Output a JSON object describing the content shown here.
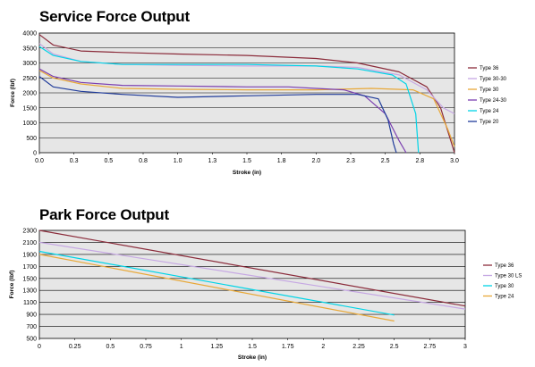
{
  "chart_data": [
    {
      "type": "line",
      "title": "Service Force Output",
      "xlabel": "Stroke (in)",
      "ylabel": "Force (lbf)",
      "xlim": [
        0,
        3.0
      ],
      "ylim": [
        0,
        4000
      ],
      "xticks": [
        0,
        0.25,
        0.5,
        0.75,
        1.0,
        1.25,
        1.5,
        1.75,
        2.0,
        2.25,
        2.5,
        2.75,
        3.0
      ],
      "xtick_labels": [
        "0.0",
        "0.3",
        "0.5",
        "0.8",
        "1.0",
        "1.3",
        "1.5",
        "1.8",
        "2.0",
        "2.3",
        "2.5",
        "2.8",
        "3.0"
      ],
      "yticks": [
        0,
        500,
        1000,
        1500,
        2000,
        2500,
        3000,
        3500,
        4000
      ],
      "grid": "horizontal",
      "legend": "right",
      "series": [
        {
          "name": "Type 36",
          "color": "#8b2c3b",
          "x": [
            0,
            0.1,
            0.3,
            0.6,
            1.0,
            1.5,
            2.0,
            2.3,
            2.6,
            2.8,
            2.9,
            2.96,
            3.0
          ],
          "y": [
            3950,
            3600,
            3400,
            3350,
            3300,
            3250,
            3150,
            3000,
            2700,
            2200,
            1500,
            600,
            0
          ]
        },
        {
          "name": "Type 30-30",
          "color": "#c6a8e3",
          "x": [
            0,
            0.1,
            0.3,
            0.6,
            1.0,
            1.5,
            2.0,
            2.3,
            2.6,
            2.8,
            2.92,
            3.0
          ],
          "y": [
            3650,
            3300,
            3050,
            2950,
            2920,
            2900,
            2900,
            2850,
            2600,
            2100,
            1500,
            1300
          ]
        },
        {
          "name": "Type 30",
          "color": "#e8a838",
          "x": [
            0,
            0.1,
            0.3,
            0.6,
            1.0,
            1.5,
            2.0,
            2.4,
            2.7,
            2.85,
            2.95,
            3.0
          ],
          "y": [
            2750,
            2500,
            2300,
            2150,
            2120,
            2100,
            2100,
            2150,
            2100,
            1800,
            800,
            200
          ]
        },
        {
          "name": "Type 24-30",
          "color": "#7b3fb0",
          "x": [
            0,
            0.1,
            0.3,
            0.6,
            1.0,
            1.5,
            1.8,
            2.0,
            2.2,
            2.35,
            2.5,
            2.6,
            2.65
          ],
          "y": [
            2800,
            2550,
            2350,
            2250,
            2230,
            2200,
            2200,
            2150,
            2100,
            1900,
            1300,
            400,
            0
          ]
        },
        {
          "name": "Type 24",
          "color": "#00d4e6",
          "x": [
            0,
            0.1,
            0.3,
            0.6,
            1.0,
            1.5,
            2.0,
            2.3,
            2.55,
            2.65,
            2.72,
            2.74
          ],
          "y": [
            3550,
            3250,
            3050,
            2950,
            2950,
            2950,
            2900,
            2800,
            2600,
            2300,
            1300,
            0
          ]
        },
        {
          "name": "Type 20",
          "color": "#1f3b9a",
          "x": [
            0,
            0.1,
            0.3,
            0.6,
            1.0,
            1.5,
            2.0,
            2.3,
            2.45,
            2.52,
            2.56,
            2.58
          ],
          "y": [
            2550,
            2200,
            2050,
            1950,
            1850,
            1900,
            1950,
            1950,
            1800,
            1100,
            300,
            0
          ]
        }
      ]
    },
    {
      "type": "line",
      "title": "Park Force Output",
      "xlabel": "Stroke (in)",
      "ylabel": "Force (lbf)",
      "xlim": [
        0,
        3
      ],
      "ylim": [
        500,
        2300
      ],
      "xticks": [
        0,
        0.25,
        0.5,
        0.75,
        1,
        1.25,
        1.5,
        1.75,
        2,
        2.25,
        2.5,
        2.75,
        3
      ],
      "xtick_labels": [
        "0",
        "0.25",
        "0.5",
        "0.75",
        "1",
        "1.25",
        "1.5",
        "1.75",
        "2",
        "2.25",
        "2.5",
        "2.75",
        "3"
      ],
      "yticks": [
        500,
        700,
        900,
        1100,
        1300,
        1500,
        1700,
        1900,
        2100,
        2300
      ],
      "grid": "horizontal",
      "legend": "right",
      "series": [
        {
          "name": "Type 36",
          "color": "#8b2c3b",
          "x": [
            0,
            3
          ],
          "y": [
            2300,
            1040
          ]
        },
        {
          "name": "Type 30 LS",
          "color": "#c6a8e3",
          "x": [
            0,
            3
          ],
          "y": [
            2100,
            990
          ]
        },
        {
          "name": "Type 30",
          "color": "#00d4e6",
          "x": [
            0,
            2.5
          ],
          "y": [
            1950,
            890
          ]
        },
        {
          "name": "Type 24",
          "color": "#e8a838",
          "x": [
            0,
            2.5
          ],
          "y": [
            1900,
            790
          ]
        }
      ]
    }
  ]
}
